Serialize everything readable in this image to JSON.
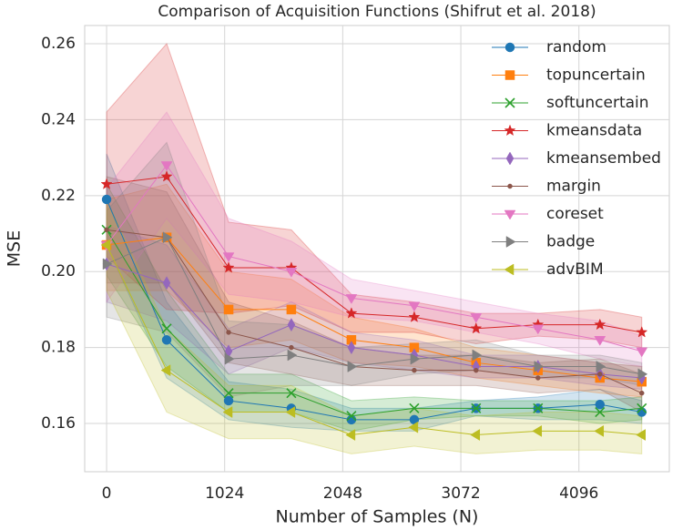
{
  "chart_data": {
    "type": "line",
    "title": "Comparison of Acquisition Functions (Shifrut et al. 2018)",
    "xlabel": "Number of Samples (N)",
    "ylabel": "MSE",
    "x": [
      0,
      521,
      1058,
      1602,
      2123,
      2668,
      3204,
      3741,
      4278,
      4641
    ],
    "xlim": [
      -190,
      4880
    ],
    "xticks": [
      0,
      1024,
      2048,
      3072,
      4096
    ],
    "ylim": [
      0.1473,
      0.2648
    ],
    "yticks": [
      {
        "value": 0.16,
        "label": "0.16"
      },
      {
        "value": 0.18,
        "label": "0.18"
      },
      {
        "value": 0.2,
        "label": "0.20"
      },
      {
        "value": 0.22,
        "label": "0.22"
      },
      {
        "value": 0.24,
        "label": "0.24"
      },
      {
        "value": 0.26,
        "label": "0.26"
      }
    ],
    "grid": true,
    "legend": "upper right",
    "series": [
      {
        "name": "random",
        "color": "#1f77b4",
        "marker": "circle",
        "values": [
          0.219,
          0.182,
          0.166,
          0.164,
          0.161,
          0.161,
          0.164,
          0.164,
          0.165,
          0.163
        ],
        "errors": [
          0.012,
          0.01,
          0.005,
          0.005,
          0.003,
          0.003,
          0.002,
          0.003,
          0.004,
          0.003
        ]
      },
      {
        "name": "topuncertain",
        "color": "#ff7f0e",
        "marker": "square",
        "values": [
          0.207,
          0.209,
          0.19,
          0.19,
          0.182,
          0.18,
          0.176,
          0.174,
          0.172,
          0.171
        ],
        "errors": [
          0.012,
          0.014,
          0.01,
          0.008,
          0.006,
          0.005,
          0.004,
          0.004,
          0.004,
          0.004
        ]
      },
      {
        "name": "softuncertain",
        "color": "#2ca02c",
        "marker": "x",
        "values": [
          0.211,
          0.185,
          0.168,
          0.168,
          0.162,
          0.164,
          0.164,
          0.164,
          0.163,
          0.164
        ],
        "errors": [
          0.012,
          0.01,
          0.005,
          0.005,
          0.004,
          0.003,
          0.002,
          0.002,
          0.003,
          0.003
        ]
      },
      {
        "name": "kmeansdata",
        "color": "#d62728",
        "marker": "star",
        "values": [
          0.223,
          0.225,
          0.201,
          0.201,
          0.189,
          0.188,
          0.185,
          0.186,
          0.186,
          0.184
        ],
        "errors": [
          0.019,
          0.035,
          0.012,
          0.01,
          0.005,
          0.004,
          0.004,
          0.003,
          0.004,
          0.004
        ]
      },
      {
        "name": "kmeansembed",
        "color": "#9467bd",
        "marker": "diamond",
        "values": [
          0.202,
          0.197,
          0.179,
          0.186,
          0.18,
          0.178,
          0.175,
          0.175,
          0.173,
          0.172
        ],
        "errors": [
          0.01,
          0.01,
          0.006,
          0.006,
          0.004,
          0.004,
          0.003,
          0.003,
          0.003,
          0.003
        ]
      },
      {
        "name": "margin",
        "color": "#8c564b",
        "marker": "point",
        "values": [
          0.211,
          0.209,
          0.184,
          0.18,
          0.175,
          0.174,
          0.174,
          0.172,
          0.173,
          0.168
        ],
        "errors": [
          0.014,
          0.012,
          0.008,
          0.007,
          0.005,
          0.004,
          0.004,
          0.004,
          0.004,
          0.005
        ]
      },
      {
        "name": "coreset",
        "color": "#e377c2",
        "marker": "tri-down",
        "values": [
          0.207,
          0.228,
          0.204,
          0.2,
          0.193,
          0.191,
          0.188,
          0.185,
          0.182,
          0.179
        ],
        "errors": [
          0.015,
          0.014,
          0.01,
          0.008,
          0.005,
          0.004,
          0.004,
          0.004,
          0.005,
          0.004
        ]
      },
      {
        "name": "badge",
        "color": "#7f7f7f",
        "marker": "tri-right",
        "values": [
          0.202,
          0.209,
          0.177,
          0.178,
          0.175,
          0.177,
          0.178,
          0.175,
          0.175,
          0.173
        ],
        "errors": [
          0.014,
          0.025,
          0.01,
          0.008,
          0.005,
          0.004,
          0.004,
          0.003,
          0.003,
          0.003
        ]
      },
      {
        "name": "advBIM",
        "color": "#bcbd22",
        "marker": "tri-left",
        "values": [
          0.207,
          0.174,
          0.163,
          0.163,
          0.157,
          0.159,
          0.157,
          0.158,
          0.158,
          0.157
        ],
        "errors": [
          0.012,
          0.011,
          0.007,
          0.007,
          0.005,
          0.005,
          0.005,
          0.005,
          0.005,
          0.005
        ]
      }
    ]
  }
}
